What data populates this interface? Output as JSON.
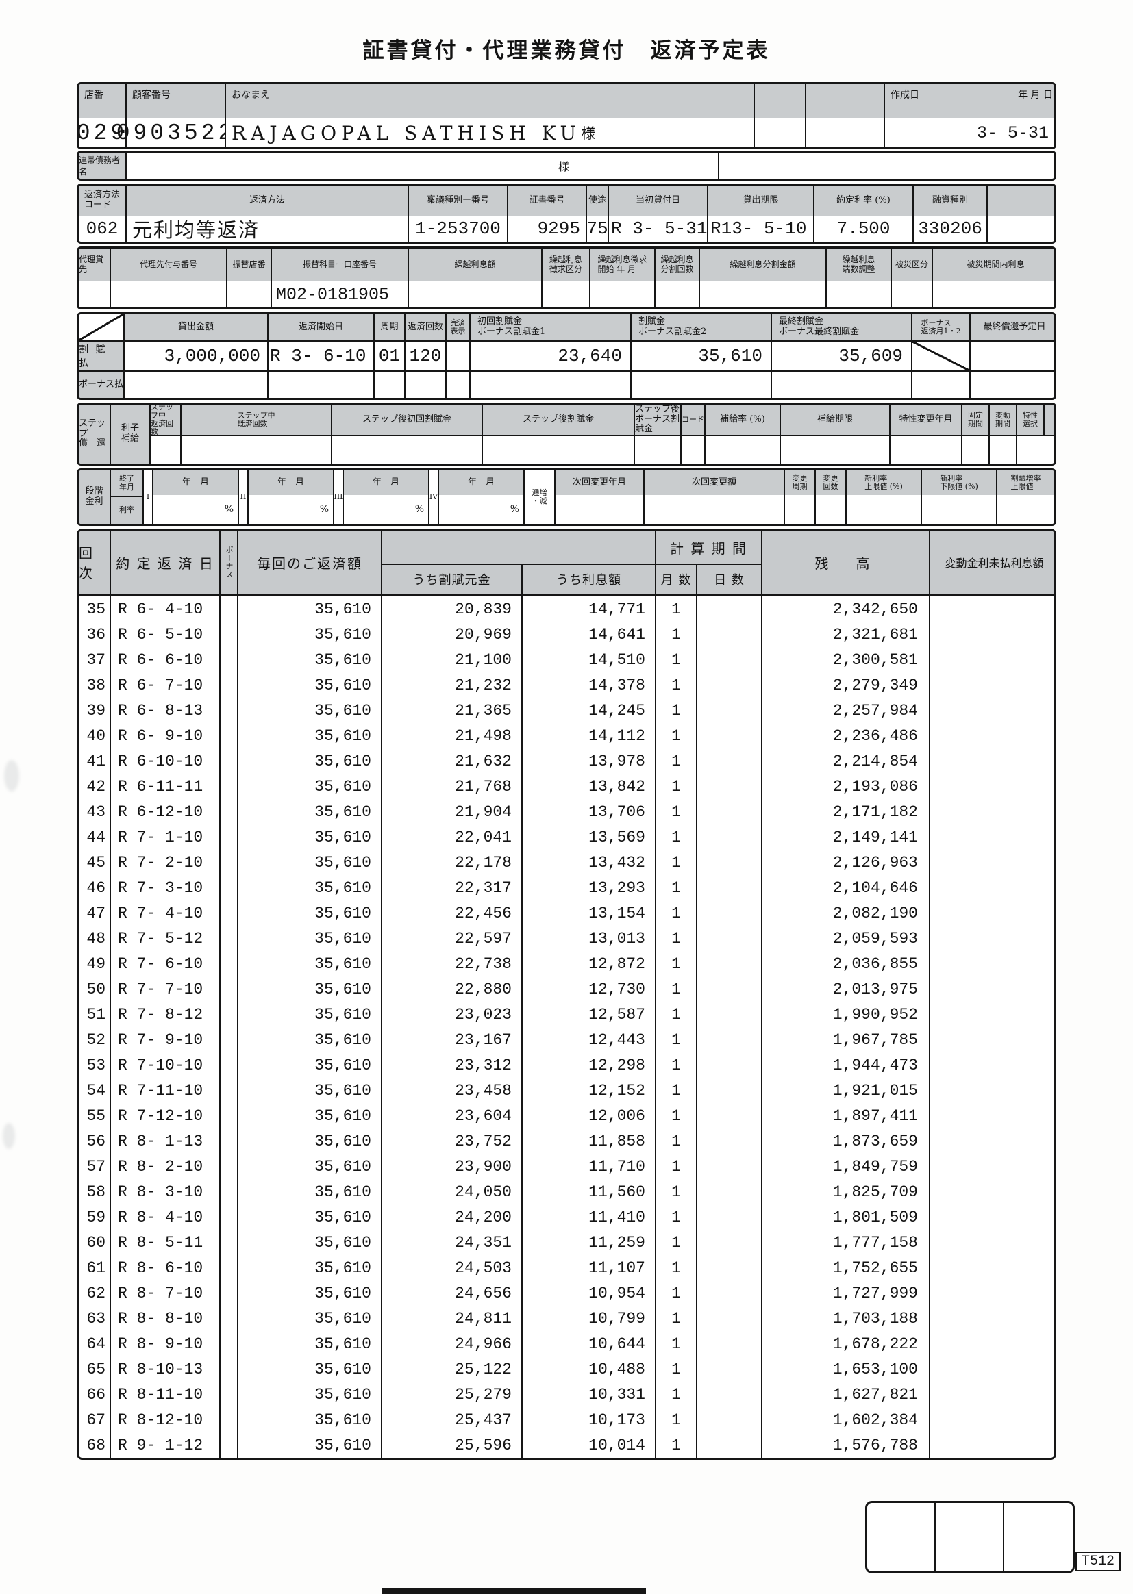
{
  "page": {
    "title": "証書貸付・代理業務貸付　返済予定表",
    "form_code": "T512"
  },
  "customer": {
    "store_label": "店番",
    "store": "029",
    "customer_no_label": "顧客番号",
    "customer_no": "0903522",
    "name_label": "おなまえ",
    "name": "RAJAGOPAL SATHISH KU",
    "name_suffix": "様",
    "created_label": "作成日",
    "created_ymd_label": "年  月  日",
    "created": "3- 5-31"
  },
  "joint": {
    "label": "連帯債務者名",
    "value": "様"
  },
  "loan": {
    "labels": [
      "返済方法\nコード",
      "返済方法",
      "稟議種別ー番号",
      "証書番号",
      "使途",
      "当初貸付日",
      "貸出期限",
      "約定利率 (%)",
      "融資種別",
      ""
    ],
    "values": [
      "062",
      "元利均等返済",
      "1-253700",
      "9295",
      "75",
      "R 3- 5-31",
      "R13- 5-10",
      "7.500",
      "330206",
      ""
    ]
  },
  "agency": {
    "labels": [
      "代理貸先",
      "代理先付与番号",
      "振替店番",
      "振替科目ー口座番号",
      "繰越利息額",
      "繰越利息\n徴求区分",
      "繰越利息徴求\n開始 年 月",
      "繰越利息\n分割回数",
      "繰越利息分割金額",
      "繰越利息\n端数調整",
      "被災区分",
      "被災期間内利息"
    ],
    "account": "M02-0181905"
  },
  "installment": {
    "col_labels": [
      "貸出金額",
      "返済開始日",
      "周期",
      "返済回数",
      "完済\n表示",
      "初回割賦金\nボーナス割賦金1",
      "割賦金\nボーナス割賦金2",
      "最終割賦金\nボーナス最終割賦金",
      "ボーナス\n返済月1・2",
      "最終償還予定日"
    ],
    "row1_label": "割 賦 払",
    "row2_label": "ボーナス払",
    "row1_values": [
      "3,000,000",
      "R 3- 6-10",
      "01",
      "120",
      "",
      "23,640",
      "35,610",
      "35,609"
    ]
  },
  "step": {
    "left_label": "ステップ\n償　還",
    "labels": [
      "ステップ中\n返済回数",
      "ステップ中\n既済回数",
      "ステップ後初回割賦金",
      "ステップ後割賦金",
      "ステップ後ボーナス割賦金"
    ],
    "subsidy_label": "利子\n補給",
    "labels2": [
      "コード",
      "補給率 (%)",
      "補給期限",
      "特性変更年月",
      "固定\n期間",
      "変動\n期間",
      "特性\n選択"
    ]
  },
  "tiered": {
    "left_label": "段階\n金利",
    "end_label": "終了\n年月",
    "rate_label": "利率",
    "groups": [
      "I",
      "II",
      "III",
      "IV"
    ],
    "ym_label": "年　月",
    "pct_label": "%",
    "teizo_label": "逓増\n・減",
    "labels": [
      "次回変更年月",
      "次回変更額",
      "変更\n周期",
      "変更\n回数",
      "新利率\n上限値 (%)",
      "新利率\n下限値 (%)",
      "割賦増率\n上限値"
    ]
  },
  "schedule": {
    "headers": {
      "no": "回 次",
      "date": "約 定 返 済 日",
      "bonus": "ボーナス",
      "payment": "毎回のご返済額",
      "principal": "うち割賦元金",
      "interest": "うち利息額",
      "period": "計 算 期 間",
      "months": "月 数",
      "days": "日 数",
      "balance": "残　高",
      "floating": "変動金利未払利息額"
    },
    "rows": [
      [
        "35",
        "R 6- 4-10",
        "35,610",
        "20,839",
        "14,771",
        "1",
        "2,342,650"
      ],
      [
        "36",
        "R 6- 5-10",
        "35,610",
        "20,969",
        "14,641",
        "1",
        "2,321,681"
      ],
      [
        "37",
        "R 6- 6-10",
        "35,610",
        "21,100",
        "14,510",
        "1",
        "2,300,581"
      ],
      [
        "38",
        "R 6- 7-10",
        "35,610",
        "21,232",
        "14,378",
        "1",
        "2,279,349"
      ],
      [
        "39",
        "R 6- 8-13",
        "35,610",
        "21,365",
        "14,245",
        "1",
        "2,257,984"
      ],
      [
        "40",
        "R 6- 9-10",
        "35,610",
        "21,498",
        "14,112",
        "1",
        "2,236,486"
      ],
      [
        "41",
        "R 6-10-10",
        "35,610",
        "21,632",
        "13,978",
        "1",
        "2,214,854"
      ],
      [
        "42",
        "R 6-11-11",
        "35,610",
        "21,768",
        "13,842",
        "1",
        "2,193,086"
      ],
      [
        "43",
        "R 6-12-10",
        "35,610",
        "21,904",
        "13,706",
        "1",
        "2,171,182"
      ],
      [
        "44",
        "R 7- 1-10",
        "35,610",
        "22,041",
        "13,569",
        "1",
        "2,149,141"
      ],
      [
        "45",
        "R 7- 2-10",
        "35,610",
        "22,178",
        "13,432",
        "1",
        "2,126,963"
      ],
      [
        "46",
        "R 7- 3-10",
        "35,610",
        "22,317",
        "13,293",
        "1",
        "2,104,646"
      ],
      [
        "47",
        "R 7- 4-10",
        "35,610",
        "22,456",
        "13,154",
        "1",
        "2,082,190"
      ],
      [
        "48",
        "R 7- 5-12",
        "35,610",
        "22,597",
        "13,013",
        "1",
        "2,059,593"
      ],
      [
        "49",
        "R 7- 6-10",
        "35,610",
        "22,738",
        "12,872",
        "1",
        "2,036,855"
      ],
      [
        "50",
        "R 7- 7-10",
        "35,610",
        "22,880",
        "12,730",
        "1",
        "2,013,975"
      ],
      [
        "51",
        "R 7- 8-12",
        "35,610",
        "23,023",
        "12,587",
        "1",
        "1,990,952"
      ],
      [
        "52",
        "R 7- 9-10",
        "35,610",
        "23,167",
        "12,443",
        "1",
        "1,967,785"
      ],
      [
        "53",
        "R 7-10-10",
        "35,610",
        "23,312",
        "12,298",
        "1",
        "1,944,473"
      ],
      [
        "54",
        "R 7-11-10",
        "35,610",
        "23,458",
        "12,152",
        "1",
        "1,921,015"
      ],
      [
        "55",
        "R 7-12-10",
        "35,610",
        "23,604",
        "12,006",
        "1",
        "1,897,411"
      ],
      [
        "56",
        "R 8- 1-13",
        "35,610",
        "23,752",
        "11,858",
        "1",
        "1,873,659"
      ],
      [
        "57",
        "R 8- 2-10",
        "35,610",
        "23,900",
        "11,710",
        "1",
        "1,849,759"
      ],
      [
        "58",
        "R 8- 3-10",
        "35,610",
        "24,050",
        "11,560",
        "1",
        "1,825,709"
      ],
      [
        "59",
        "R 8- 4-10",
        "35,610",
        "24,200",
        "11,410",
        "1",
        "1,801,509"
      ],
      [
        "60",
        "R 8- 5-11",
        "35,610",
        "24,351",
        "11,259",
        "1",
        "1,777,158"
      ],
      [
        "61",
        "R 8- 6-10",
        "35,610",
        "24,503",
        "11,107",
        "1",
        "1,752,655"
      ],
      [
        "62",
        "R 8- 7-10",
        "35,610",
        "24,656",
        "10,954",
        "1",
        "1,727,999"
      ],
      [
        "63",
        "R 8- 8-10",
        "35,610",
        "24,811",
        "10,799",
        "1",
        "1,703,188"
      ],
      [
        "64",
        "R 8- 9-10",
        "35,610",
        "24,966",
        "10,644",
        "1",
        "1,678,222"
      ],
      [
        "65",
        "R 8-10-13",
        "35,610",
        "25,122",
        "10,488",
        "1",
        "1,653,100"
      ],
      [
        "66",
        "R 8-11-10",
        "35,610",
        "25,279",
        "10,331",
        "1",
        "1,627,821"
      ],
      [
        "67",
        "R 8-12-10",
        "35,610",
        "25,437",
        "10,173",
        "1",
        "1,602,384"
      ],
      [
        "68",
        "R 9- 1-12",
        "35,610",
        "25,596",
        "10,014",
        "1",
        "1,576,788"
      ]
    ]
  }
}
